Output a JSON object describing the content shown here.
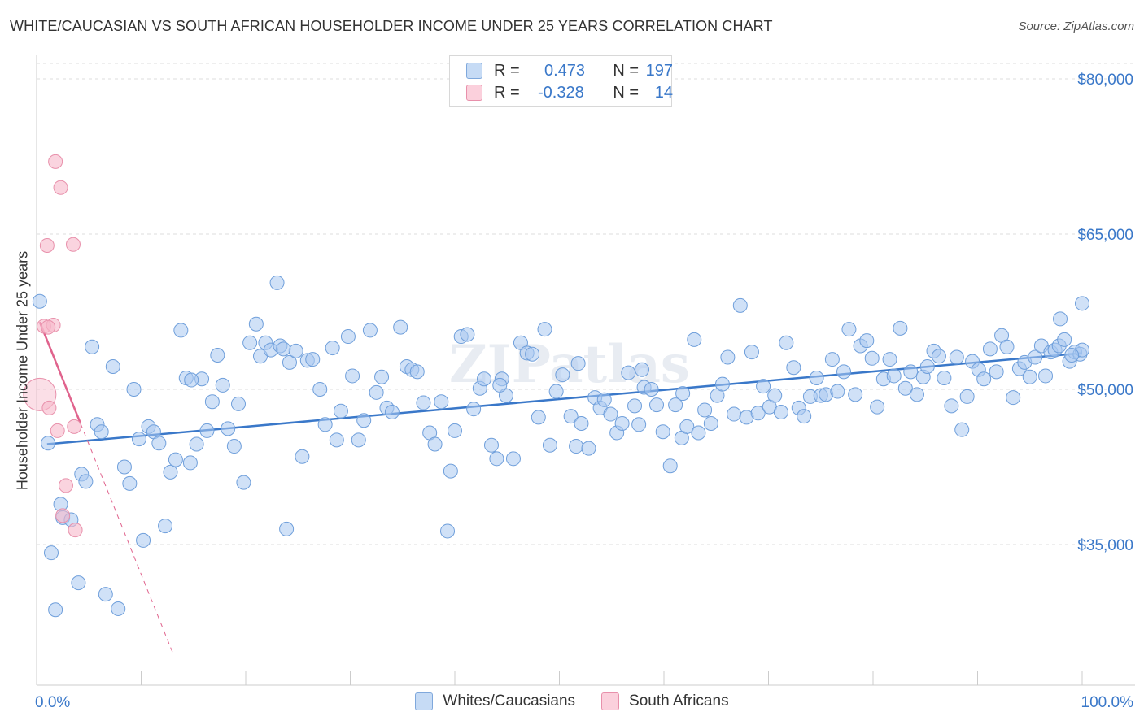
{
  "title": "WHITE/CAUCASIAN VS SOUTH AFRICAN HOUSEHOLDER INCOME UNDER 25 YEARS CORRELATION CHART",
  "source": "Source: ZipAtlas.com",
  "watermark": "ZIPatlas",
  "legend_top": {
    "rows": [
      {
        "r_label": "R =",
        "r_value": "0.473",
        "n_label": "N =",
        "n_value": "197",
        "color": "#a9c8f0"
      },
      {
        "r_label": "R =",
        "r_value": "-0.328",
        "n_label": "N =",
        "n_value": "14",
        "color": "#f7b7c9"
      }
    ]
  },
  "legend_bottom": [
    {
      "label": "Whites/Caucasians",
      "color": "#a9c8f0"
    },
    {
      "label": "South Africans",
      "color": "#f7b7c9"
    }
  ],
  "chart_data": {
    "type": "scatter",
    "title": "WHITE/CAUCASIAN VS SOUTH AFRICAN HOUSEHOLDER INCOME UNDER 25 YEARS CORRELATION CHART",
    "xlabel": "",
    "ylabel": "Householder Income Under 25 years",
    "xlim": [
      0,
      100
    ],
    "ylim": [
      20000,
      85000
    ],
    "x_tick_labels": [
      "0.0%",
      "100.0%"
    ],
    "y_ticks": [
      35000,
      50000,
      65000,
      80000
    ],
    "y_tick_labels": [
      "$35,000",
      "$50,000",
      "$65,000",
      "$80,000"
    ],
    "grid": true,
    "legend_position": "top-center",
    "colors": {
      "whites": "#3a78c9",
      "whites_fill": "#a9c8f0",
      "sa": "#e0638d",
      "sa_fill": "#f7b7c9"
    },
    "series": [
      {
        "name": "Whites/Caucasians",
        "trend": {
          "x0": 1.0,
          "y0": 44700,
          "x1": 100.0,
          "y1": 53500
        },
        "points": [
          [
            0.3,
            58500
          ],
          [
            1.1,
            44800
          ],
          [
            1.4,
            34200
          ],
          [
            1.8,
            28700
          ],
          [
            2.3,
            38900
          ],
          [
            2.5,
            37600
          ],
          [
            3.3,
            37400
          ],
          [
            4.0,
            31300
          ],
          [
            4.3,
            41800
          ],
          [
            4.7,
            41100
          ],
          [
            5.3,
            54100
          ],
          [
            5.8,
            46600
          ],
          [
            6.2,
            45900
          ],
          [
            6.6,
            30200
          ],
          [
            7.3,
            52200
          ],
          [
            7.8,
            28800
          ],
          [
            8.4,
            42500
          ],
          [
            8.9,
            40900
          ],
          [
            9.3,
            50000
          ],
          [
            9.8,
            45200
          ],
          [
            10.2,
            35400
          ],
          [
            10.7,
            46400
          ],
          [
            11.2,
            45900
          ],
          [
            11.7,
            44800
          ],
          [
            12.3,
            36800
          ],
          [
            12.8,
            42000
          ],
          [
            13.3,
            43200
          ],
          [
            13.8,
            55700
          ],
          [
            14.3,
            51100
          ],
          [
            14.7,
            42900
          ],
          [
            15.3,
            44700
          ],
          [
            15.8,
            51000
          ],
          [
            16.3,
            46000
          ],
          [
            16.8,
            48800
          ],
          [
            17.3,
            53300
          ],
          [
            17.8,
            50400
          ],
          [
            18.3,
            46200
          ],
          [
            18.9,
            44500
          ],
          [
            19.3,
            48600
          ],
          [
            19.8,
            41000
          ],
          [
            20.4,
            54500
          ],
          [
            21.0,
            56300
          ],
          [
            21.4,
            53200
          ],
          [
            21.9,
            54500
          ],
          [
            22.4,
            53800
          ],
          [
            23.0,
            60300
          ],
          [
            23.3,
            54200
          ],
          [
            23.9,
            36500
          ],
          [
            24.2,
            52600
          ],
          [
            24.8,
            53700
          ],
          [
            25.4,
            43500
          ],
          [
            25.9,
            52800
          ],
          [
            26.4,
            52900
          ],
          [
            27.1,
            50000
          ],
          [
            27.6,
            46600
          ],
          [
            28.3,
            54000
          ],
          [
            28.7,
            45100
          ],
          [
            29.1,
            47900
          ],
          [
            29.8,
            55100
          ],
          [
            30.2,
            51300
          ],
          [
            30.8,
            45100
          ],
          [
            31.3,
            47000
          ],
          [
            31.9,
            55700
          ],
          [
            32.5,
            49700
          ],
          [
            33.0,
            51200
          ],
          [
            33.5,
            48200
          ],
          [
            34.0,
            47800
          ],
          [
            34.8,
            56000
          ],
          [
            35.4,
            52200
          ],
          [
            35.9,
            51900
          ],
          [
            36.4,
            51700
          ],
          [
            37.0,
            48700
          ],
          [
            37.6,
            45800
          ],
          [
            38.1,
            44700
          ],
          [
            38.7,
            48800
          ],
          [
            39.3,
            36300
          ],
          [
            39.6,
            42100
          ],
          [
            40.0,
            46000
          ],
          [
            40.6,
            55100
          ],
          [
            41.2,
            55300
          ],
          [
            41.8,
            48100
          ],
          [
            42.4,
            50100
          ],
          [
            42.8,
            51000
          ],
          [
            43.5,
            44600
          ],
          [
            44.0,
            43300
          ],
          [
            44.5,
            51000
          ],
          [
            44.9,
            49400
          ],
          [
            45.6,
            43300
          ],
          [
            46.3,
            54500
          ],
          [
            46.9,
            53500
          ],
          [
            47.4,
            53400
          ],
          [
            48.0,
            47300
          ],
          [
            48.6,
            55800
          ],
          [
            49.1,
            44600
          ],
          [
            49.7,
            49800
          ],
          [
            50.3,
            51400
          ],
          [
            51.1,
            47400
          ],
          [
            51.6,
            44500
          ],
          [
            52.1,
            46700
          ],
          [
            52.8,
            44300
          ],
          [
            53.4,
            49200
          ],
          [
            53.9,
            48200
          ],
          [
            54.3,
            49000
          ],
          [
            54.9,
            47600
          ],
          [
            55.5,
            45800
          ],
          [
            56.0,
            46700
          ],
          [
            56.6,
            51600
          ],
          [
            57.2,
            48400
          ],
          [
            57.6,
            46600
          ],
          [
            58.1,
            50200
          ],
          [
            58.8,
            50000
          ],
          [
            59.3,
            48500
          ],
          [
            59.9,
            45900
          ],
          [
            60.6,
            42600
          ],
          [
            61.1,
            48500
          ],
          [
            61.7,
            45300
          ],
          [
            62.2,
            46400
          ],
          [
            62.9,
            54800
          ],
          [
            63.3,
            45800
          ],
          [
            63.9,
            48000
          ],
          [
            64.5,
            46700
          ],
          [
            65.1,
            49400
          ],
          [
            65.6,
            50500
          ],
          [
            66.1,
            53100
          ],
          [
            66.7,
            47600
          ],
          [
            67.3,
            58100
          ],
          [
            67.9,
            47300
          ],
          [
            68.4,
            53600
          ],
          [
            69.0,
            47700
          ],
          [
            69.5,
            50300
          ],
          [
            70.1,
            48300
          ],
          [
            70.6,
            49400
          ],
          [
            71.2,
            47800
          ],
          [
            71.7,
            54500
          ],
          [
            72.4,
            52100
          ],
          [
            72.9,
            48200
          ],
          [
            73.4,
            47400
          ],
          [
            74.0,
            49300
          ],
          [
            74.6,
            51100
          ],
          [
            75.0,
            49400
          ],
          [
            75.5,
            49500
          ],
          [
            76.1,
            52900
          ],
          [
            76.6,
            49800
          ],
          [
            77.2,
            51700
          ],
          [
            77.7,
            55800
          ],
          [
            78.3,
            49500
          ],
          [
            78.8,
            54200
          ],
          [
            79.4,
            54700
          ],
          [
            79.9,
            53000
          ],
          [
            80.4,
            48300
          ],
          [
            81.0,
            51000
          ],
          [
            81.6,
            52900
          ],
          [
            82.0,
            51300
          ],
          [
            82.6,
            55900
          ],
          [
            83.1,
            50100
          ],
          [
            83.6,
            51700
          ],
          [
            84.2,
            49500
          ],
          [
            84.8,
            51200
          ],
          [
            85.2,
            52200
          ],
          [
            85.8,
            53700
          ],
          [
            86.3,
            53200
          ],
          [
            86.8,
            51100
          ],
          [
            87.5,
            48400
          ],
          [
            88.0,
            53100
          ],
          [
            88.5,
            46100
          ],
          [
            89.0,
            49300
          ],
          [
            89.5,
            52700
          ],
          [
            90.1,
            51900
          ],
          [
            90.6,
            51000
          ],
          [
            91.2,
            53900
          ],
          [
            91.8,
            51700
          ],
          [
            92.3,
            55200
          ],
          [
            92.8,
            54100
          ],
          [
            93.4,
            49200
          ],
          [
            94.0,
            52000
          ],
          [
            94.5,
            52600
          ],
          [
            95.0,
            51200
          ],
          [
            95.5,
            53100
          ],
          [
            96.1,
            54200
          ],
          [
            96.5,
            51300
          ],
          [
            97.0,
            53600
          ],
          [
            97.4,
            53800
          ],
          [
            97.8,
            54200
          ],
          [
            98.3,
            54800
          ],
          [
            98.8,
            52700
          ],
          [
            99.3,
            53600
          ],
          [
            99.8,
            53400
          ],
          [
            100.0,
            53800
          ],
          [
            97.9,
            56800
          ],
          [
            99.0,
            53300
          ],
          [
            100.0,
            58300
          ],
          [
            61.8,
            49600
          ],
          [
            14.8,
            50900
          ],
          [
            51.8,
            52500
          ],
          [
            23.6,
            53900
          ],
          [
            44.3,
            50400
          ],
          [
            57.9,
            51900
          ]
        ]
      },
      {
        "name": "South Africans",
        "trend": {
          "x0": 0.3,
          "y0": 56500,
          "x1": 4.2,
          "y1": 46700,
          "extend_to_x": 13.0
        },
        "points": [
          [
            0.3,
            49500
          ],
          [
            0.7,
            56100
          ],
          [
            1.0,
            63900
          ],
          [
            1.2,
            48200
          ],
          [
            1.6,
            56200
          ],
          [
            1.8,
            72000
          ],
          [
            2.0,
            46000
          ],
          [
            2.3,
            69500
          ],
          [
            2.8,
            40700
          ],
          [
            2.5,
            37800
          ],
          [
            3.5,
            64000
          ],
          [
            3.7,
            36400
          ],
          [
            3.6,
            46400
          ],
          [
            1.1,
            56000
          ]
        ]
      }
    ]
  }
}
